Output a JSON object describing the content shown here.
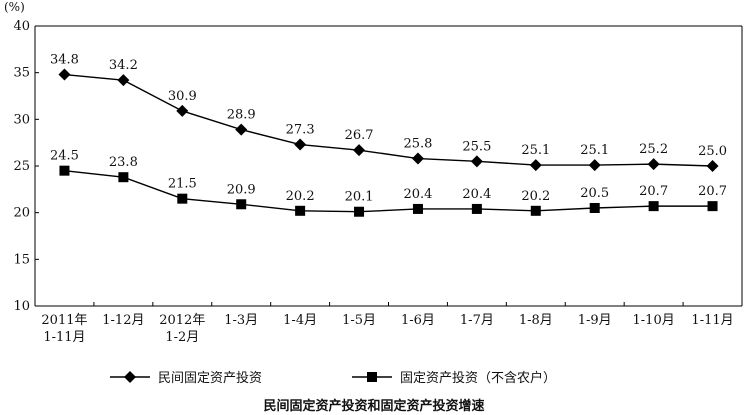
{
  "chart_data": {
    "type": "line",
    "title": "民间固定资产投资和固定资产投资增速",
    "ylabel": "(%)",
    "ylim": [
      10,
      40
    ],
    "yticks": [
      "10",
      "15",
      "20",
      "25",
      "30",
      "35",
      "40"
    ],
    "categories": [
      [
        "2011年",
        "1-11月"
      ],
      [
        "1-12月"
      ],
      [
        "2012年",
        "1-2月"
      ],
      [
        "1-3月"
      ],
      [
        "1-4月"
      ],
      [
        "1-5月"
      ],
      [
        "1-6月"
      ],
      [
        "1-7月"
      ],
      [
        "1-8月"
      ],
      [
        "1-9月"
      ],
      [
        "1-10月"
      ],
      [
        "1-11月"
      ]
    ],
    "series": [
      {
        "name": "民间固定资产投资",
        "marker": "diamond",
        "color": "#000000",
        "values": [
          34.8,
          34.2,
          30.9,
          28.9,
          27.3,
          26.7,
          25.8,
          25.5,
          25.1,
          25.1,
          25.2,
          25.0
        ],
        "labels": [
          "34.8",
          "34.2",
          "30.9",
          "28.9",
          "27.3",
          "26.7",
          "25.8",
          "25.5",
          "25.1",
          "25.1",
          "25.2",
          "25.0"
        ]
      },
      {
        "name": "固定资产投资（不含农户）",
        "marker": "square",
        "color": "#000000",
        "values": [
          24.5,
          23.8,
          21.5,
          20.9,
          20.2,
          20.1,
          20.4,
          20.4,
          20.2,
          20.5,
          20.7,
          20.7
        ],
        "labels": [
          "24.5",
          "23.8",
          "21.5",
          "20.9",
          "20.2",
          "20.1",
          "20.4",
          "20.4",
          "20.2",
          "20.5",
          "20.7",
          "20.7"
        ]
      }
    ],
    "grid": false,
    "legend_position": "bottom"
  }
}
